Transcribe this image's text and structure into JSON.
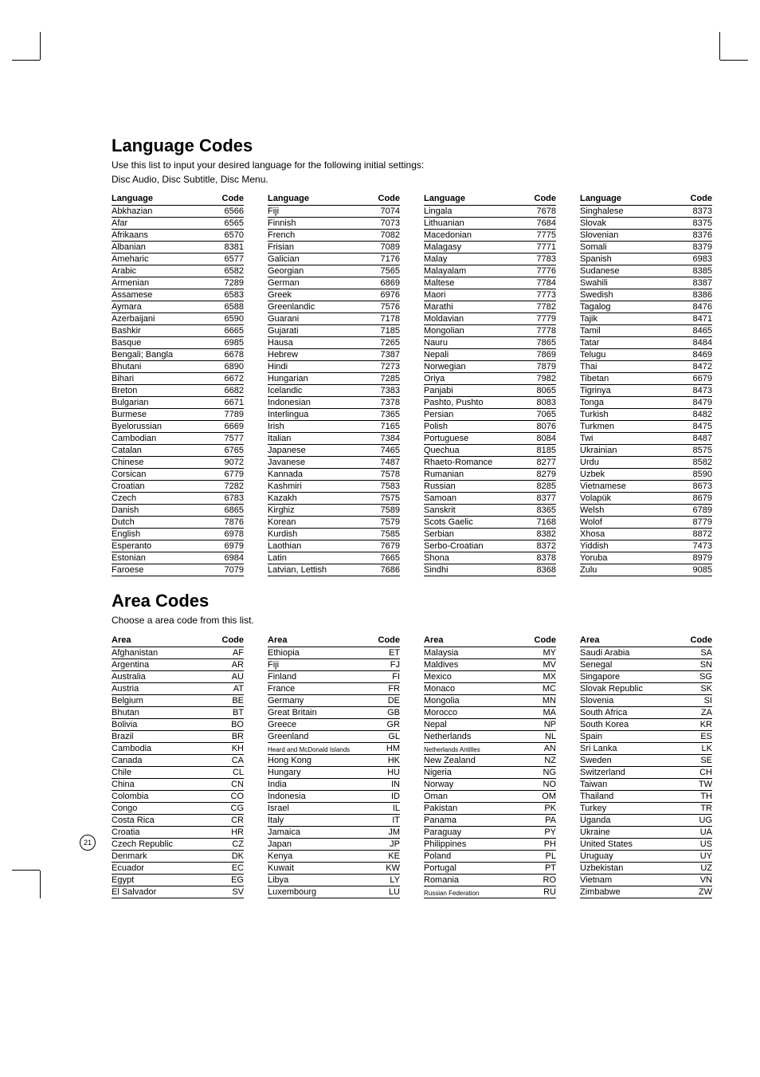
{
  "lang_section": {
    "title": "Language Codes",
    "subtitle1": "Use this list to input your desired language for the following initial settings:",
    "subtitle2": "Disc Audio, Disc Subtitle, Disc Menu.",
    "header_lang": "Language",
    "header_code": "Code",
    "cols": [
      [
        [
          "Abkhazian",
          "6566"
        ],
        [
          "Afar",
          "6565"
        ],
        [
          "Afrikaans",
          "6570"
        ],
        [
          "Albanian",
          "8381"
        ],
        [
          "Ameharic",
          "6577"
        ],
        [
          "Arabic",
          "6582"
        ],
        [
          "Armenian",
          "7289"
        ],
        [
          "Assamese",
          "6583"
        ],
        [
          "Aymara",
          "6588"
        ],
        [
          "Azerbaijani",
          "6590"
        ],
        [
          "Bashkir",
          "6665"
        ],
        [
          "Basque",
          "6985"
        ],
        [
          "Bengali; Bangla",
          "6678"
        ],
        [
          "Bhutani",
          "6890"
        ],
        [
          "Bihari",
          "6672"
        ],
        [
          "Breton",
          "6682"
        ],
        [
          "Bulgarian",
          "6671"
        ],
        [
          "Burmese",
          "7789"
        ],
        [
          "Byelorussian",
          "6669"
        ],
        [
          "Cambodian",
          "7577"
        ],
        [
          "Catalan",
          "6765"
        ],
        [
          "Chinese",
          "9072"
        ],
        [
          "Corsican",
          "6779"
        ],
        [
          "Croatian",
          "7282"
        ],
        [
          "Czech",
          "6783"
        ],
        [
          "Danish",
          "6865"
        ],
        [
          "Dutch",
          "7876"
        ],
        [
          "English",
          "6978"
        ],
        [
          "Esperanto",
          "6979"
        ],
        [
          "Estonian",
          "6984"
        ],
        [
          "Faroese",
          "7079"
        ]
      ],
      [
        [
          "Fiji",
          "7074"
        ],
        [
          "Finnish",
          "7073"
        ],
        [
          "French",
          "7082"
        ],
        [
          "Frisian",
          "7089"
        ],
        [
          "Galician",
          "7176"
        ],
        [
          "Georgian",
          "7565"
        ],
        [
          "German",
          "6869"
        ],
        [
          "Greek",
          "6976"
        ],
        [
          "Greenlandic",
          "7576"
        ],
        [
          "Guarani",
          "7178"
        ],
        [
          "Gujarati",
          "7185"
        ],
        [
          "Hausa",
          "7265"
        ],
        [
          "Hebrew",
          "7387"
        ],
        [
          "Hindi",
          "7273"
        ],
        [
          "Hungarian",
          "7285"
        ],
        [
          "Icelandic",
          "7383"
        ],
        [
          "Indonesian",
          "7378"
        ],
        [
          "Interlingua",
          "7365"
        ],
        [
          "Irish",
          "7165"
        ],
        [
          "Italian",
          "7384"
        ],
        [
          "Japanese",
          "7465"
        ],
        [
          "Javanese",
          "7487"
        ],
        [
          "Kannada",
          "7578"
        ],
        [
          "Kashmiri",
          "7583"
        ],
        [
          "Kazakh",
          "7575"
        ],
        [
          "Kirghiz",
          "7589"
        ],
        [
          "Korean",
          "7579"
        ],
        [
          "Kurdish",
          "7585"
        ],
        [
          "Laothian",
          "7679"
        ],
        [
          "Latin",
          "7665"
        ],
        [
          "Latvian, Lettish",
          "7686"
        ]
      ],
      [
        [
          "Lingala",
          "7678"
        ],
        [
          "Lithuanian",
          "7684"
        ],
        [
          "Macedonian",
          "7775"
        ],
        [
          "Malagasy",
          "7771"
        ],
        [
          "Malay",
          "7783"
        ],
        [
          "Malayalam",
          "7776"
        ],
        [
          "Maltese",
          "7784"
        ],
        [
          "Maori",
          "7773"
        ],
        [
          "Marathi",
          "7782"
        ],
        [
          "Moldavian",
          "7779"
        ],
        [
          "Mongolian",
          "7778"
        ],
        [
          "Nauru",
          "7865"
        ],
        [
          "Nepali",
          "7869"
        ],
        [
          "Norwegian",
          "7879"
        ],
        [
          "Oriya",
          "7982"
        ],
        [
          "Panjabi",
          "8065"
        ],
        [
          "Pashto, Pushto",
          "8083"
        ],
        [
          "Persian",
          "7065"
        ],
        [
          "Polish",
          "8076"
        ],
        [
          "Portuguese",
          "8084"
        ],
        [
          "Quechua",
          "8185"
        ],
        [
          "Rhaeto-Romance",
          "8277"
        ],
        [
          "Rumanian",
          "8279"
        ],
        [
          "Russian",
          "8285"
        ],
        [
          "Samoan",
          "8377"
        ],
        [
          "Sanskrit",
          "8365"
        ],
        [
          "Scots Gaelic",
          "7168"
        ],
        [
          "Serbian",
          "8382"
        ],
        [
          "Serbo-Croatian",
          "8372"
        ],
        [
          "Shona",
          "8378"
        ],
        [
          "Sindhi",
          "8368"
        ]
      ],
      [
        [
          "Singhalese",
          "8373"
        ],
        [
          "Slovak",
          "8375"
        ],
        [
          "Slovenian",
          "8376"
        ],
        [
          "Somali",
          "8379"
        ],
        [
          "Spanish",
          "6983"
        ],
        [
          "Sudanese",
          "8385"
        ],
        [
          "Swahili",
          "8387"
        ],
        [
          "Swedish",
          "8386"
        ],
        [
          "Tagalog",
          "8476"
        ],
        [
          "Tajik",
          "8471"
        ],
        [
          "Tamil",
          "8465"
        ],
        [
          "Tatar",
          "8484"
        ],
        [
          "Telugu",
          "8469"
        ],
        [
          "Thai",
          "8472"
        ],
        [
          "Tibetan",
          "6679"
        ],
        [
          "Tigrinya",
          "8473"
        ],
        [
          "Tonga",
          "8479"
        ],
        [
          "Turkish",
          "8482"
        ],
        [
          "Turkmen",
          "8475"
        ],
        [
          "Twi",
          "8487"
        ],
        [
          "Ukrainian",
          "8575"
        ],
        [
          "Urdu",
          "8582"
        ],
        [
          "Uzbek",
          "8590"
        ],
        [
          "Vietnamese",
          "8673"
        ],
        [
          "Volapük",
          "8679"
        ],
        [
          "Welsh",
          "6789"
        ],
        [
          "Wolof",
          "8779"
        ],
        [
          "Xhosa",
          "8872"
        ],
        [
          "Yiddish",
          "7473"
        ],
        [
          "Yoruba",
          "8979"
        ],
        [
          "Zulu",
          "9085"
        ]
      ]
    ]
  },
  "area_section": {
    "title": "Area Codes",
    "subtitle": "Choose a area code from this list.",
    "header_area": "Area",
    "header_code": "Code",
    "cols": [
      [
        [
          "Afghanistan",
          "AF"
        ],
        [
          "Argentina",
          "AR"
        ],
        [
          "Australia",
          "AU"
        ],
        [
          "Austria",
          "AT"
        ],
        [
          "Belgium",
          "BE"
        ],
        [
          "Bhutan",
          "BT"
        ],
        [
          "Bolivia",
          "BO"
        ],
        [
          "Brazil",
          "BR"
        ],
        [
          "Cambodia",
          "KH"
        ],
        [
          "Canada",
          "CA"
        ],
        [
          "Chile",
          "CL"
        ],
        [
          "China",
          "CN"
        ],
        [
          "Colombia",
          "CO"
        ],
        [
          "Congo",
          "CG"
        ],
        [
          "Costa Rica",
          "CR"
        ],
        [
          "Croatia",
          "HR"
        ],
        [
          "Czech Republic",
          "CZ"
        ],
        [
          "Denmark",
          "DK"
        ],
        [
          "Ecuador",
          "EC"
        ],
        [
          "Egypt",
          "EG"
        ],
        [
          "El Salvador",
          "SV"
        ]
      ],
      [
        [
          "Ethiopia",
          "ET"
        ],
        [
          "Fiji",
          "FJ"
        ],
        [
          "Finland",
          "FI"
        ],
        [
          "France",
          "FR"
        ],
        [
          "Germany",
          "DE"
        ],
        [
          "Great Britain",
          "GB"
        ],
        [
          "Greece",
          "GR"
        ],
        [
          "Greenland",
          "GL"
        ],
        [
          "Heard and McDonald Islands",
          "HM"
        ],
        [
          "Hong Kong",
          "HK"
        ],
        [
          "Hungary",
          "HU"
        ],
        [
          "India",
          "IN"
        ],
        [
          "Indonesia",
          "ID"
        ],
        [
          "Israel",
          "IL"
        ],
        [
          "Italy",
          "IT"
        ],
        [
          "Jamaica",
          "JM"
        ],
        [
          "Japan",
          "JP"
        ],
        [
          "Kenya",
          "KE"
        ],
        [
          "Kuwait",
          "KW"
        ],
        [
          "Libya",
          "LY"
        ],
        [
          "Luxembourg",
          "LU"
        ]
      ],
      [
        [
          "Malaysia",
          "MY"
        ],
        [
          "Maldives",
          "MV"
        ],
        [
          "Mexico",
          "MX"
        ],
        [
          "Monaco",
          "MC"
        ],
        [
          "Mongolia",
          "MN"
        ],
        [
          "Morocco",
          "MA"
        ],
        [
          "Nepal",
          "NP"
        ],
        [
          "Netherlands",
          "NL"
        ],
        [
          "Netherlands Antilles",
          "AN"
        ],
        [
          "New Zealand",
          "NZ"
        ],
        [
          "Nigeria",
          "NG"
        ],
        [
          "Norway",
          "NO"
        ],
        [
          "Oman",
          "OM"
        ],
        [
          "Pakistan",
          "PK"
        ],
        [
          "Panama",
          "PA"
        ],
        [
          "Paraguay",
          "PY"
        ],
        [
          "Philippines",
          "PH"
        ],
        [
          "Poland",
          "PL"
        ],
        [
          "Portugal",
          "PT"
        ],
        [
          "Romania",
          "RO"
        ],
        [
          "Russian Federation",
          "RU"
        ]
      ],
      [
        [
          "Saudi Arabia",
          "SA"
        ],
        [
          "Senegal",
          "SN"
        ],
        [
          "Singapore",
          "SG"
        ],
        [
          "Slovak Republic",
          "SK"
        ],
        [
          "Slovenia",
          "SI"
        ],
        [
          "South Africa",
          "ZA"
        ],
        [
          "South Korea",
          "KR"
        ],
        [
          "Spain",
          "ES"
        ],
        [
          "Sri Lanka",
          "LK"
        ],
        [
          "Sweden",
          "SE"
        ],
        [
          "Switzerland",
          "CH"
        ],
        [
          "Taiwan",
          "TW"
        ],
        [
          "Thailand",
          "TH"
        ],
        [
          "Turkey",
          "TR"
        ],
        [
          "Uganda",
          "UG"
        ],
        [
          "Ukraine",
          "UA"
        ],
        [
          "United States",
          "US"
        ],
        [
          "Uruguay",
          "UY"
        ],
        [
          "Uzbekistan",
          "UZ"
        ],
        [
          "Vietnam",
          "VN"
        ],
        [
          "Zimbabwe",
          "ZW"
        ]
      ]
    ]
  },
  "page_number": "21"
}
